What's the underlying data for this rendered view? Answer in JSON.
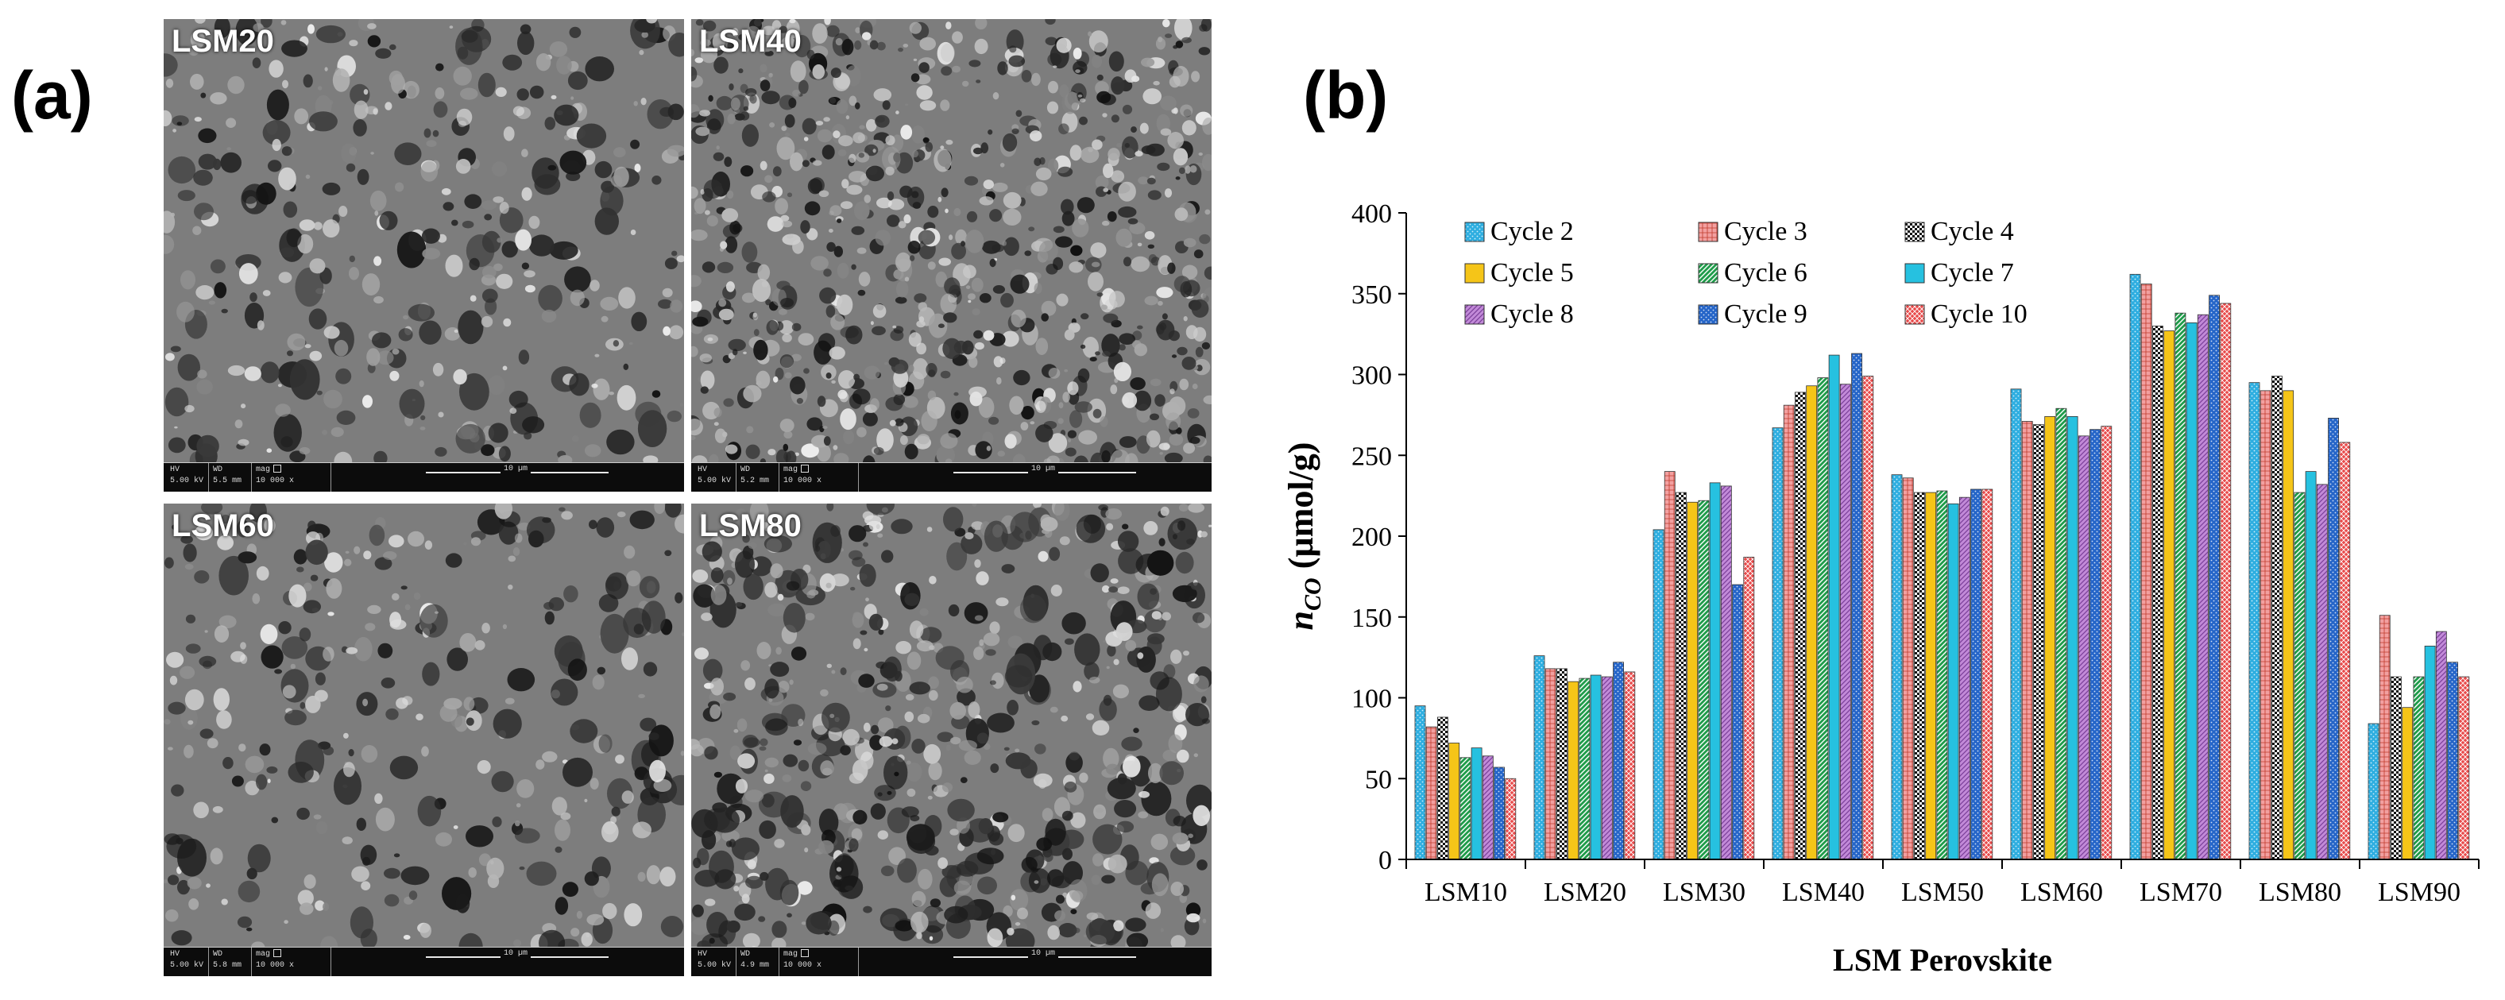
{
  "figure": {
    "panel_a_label": "(a)",
    "panel_b_label": "(b)"
  },
  "sem_images": [
    {
      "label": "LSM20",
      "hv": "5.00 kV",
      "wd": "5.5 mm",
      "mag": "10 000 x",
      "scale": "10 µm"
    },
    {
      "label": "LSM40",
      "hv": "5.00 kV",
      "wd": "5.2 mm",
      "mag": "10 000 x",
      "scale": "10 µm"
    },
    {
      "label": "LSM60",
      "hv": "5.00 kV",
      "wd": "5.8 mm",
      "mag": "10 000 x",
      "scale": "10 µm"
    },
    {
      "label": "LSM80",
      "hv": "5.00 kV",
      "wd": "4.9 mm",
      "mag": "10 000 x",
      "scale": "10 µm"
    }
  ],
  "sem_bar_headers": {
    "hv": "HV",
    "wd": "WD",
    "mag": "mag"
  },
  "chart_data": {
    "type": "bar",
    "title": "",
    "xlabel": "LSM Perovskite",
    "ylabel_main": "n",
    "ylabel_sub": "CO",
    "ylabel_unit": "(µmol/g)",
    "ylim": [
      0,
      400
    ],
    "yticks": [
      0,
      50,
      100,
      150,
      200,
      250,
      300,
      350,
      400
    ],
    "grid": false,
    "legend_position": "top-left",
    "categories": [
      "LSM10",
      "LSM20",
      "LSM30",
      "LSM40",
      "LSM50",
      "LSM60",
      "LSM70",
      "LSM80",
      "LSM90"
    ],
    "series": [
      {
        "name": "Cycle 2",
        "color": "#2eaee0",
        "pattern": "dots",
        "values": [
          95,
          126,
          204,
          267,
          238,
          291,
          362,
          295,
          84
        ]
      },
      {
        "name": "Cycle 3",
        "color": "#f2a0a0",
        "pattern": "grid",
        "values": [
          82,
          118,
          240,
          281,
          236,
          271,
          356,
          290,
          151
        ]
      },
      {
        "name": "Cycle 4",
        "color": "#111111",
        "pattern": "check",
        "values": [
          88,
          118,
          227,
          289,
          227,
          269,
          330,
          299,
          113
        ]
      },
      {
        "name": "Cycle 5",
        "color": "#f5c518",
        "pattern": "solid",
        "values": [
          72,
          110,
          221,
          293,
          227,
          274,
          327,
          290,
          94
        ]
      },
      {
        "name": "Cycle 6",
        "color": "#1f9c4a",
        "pattern": "diag",
        "values": [
          63,
          112,
          222,
          298,
          228,
          279,
          338,
          227,
          113
        ]
      },
      {
        "name": "Cycle 7",
        "color": "#26c1e0",
        "pattern": "solid",
        "values": [
          69,
          114,
          233,
          312,
          220,
          274,
          332,
          240,
          132
        ]
      },
      {
        "name": "Cycle 8",
        "color": "#c28ad8",
        "pattern": "diagw",
        "values": [
          64,
          113,
          231,
          294,
          224,
          262,
          337,
          232,
          141
        ]
      },
      {
        "name": "Cycle 9",
        "color": "#2565c8",
        "pattern": "dots",
        "values": [
          57,
          122,
          170,
          313,
          229,
          266,
          349,
          273,
          122
        ]
      },
      {
        "name": "Cycle 10",
        "color": "#e84a4a",
        "pattern": "cross",
        "values": [
          50,
          116,
          187,
          299,
          229,
          268,
          344,
          258,
          113
        ]
      }
    ]
  }
}
